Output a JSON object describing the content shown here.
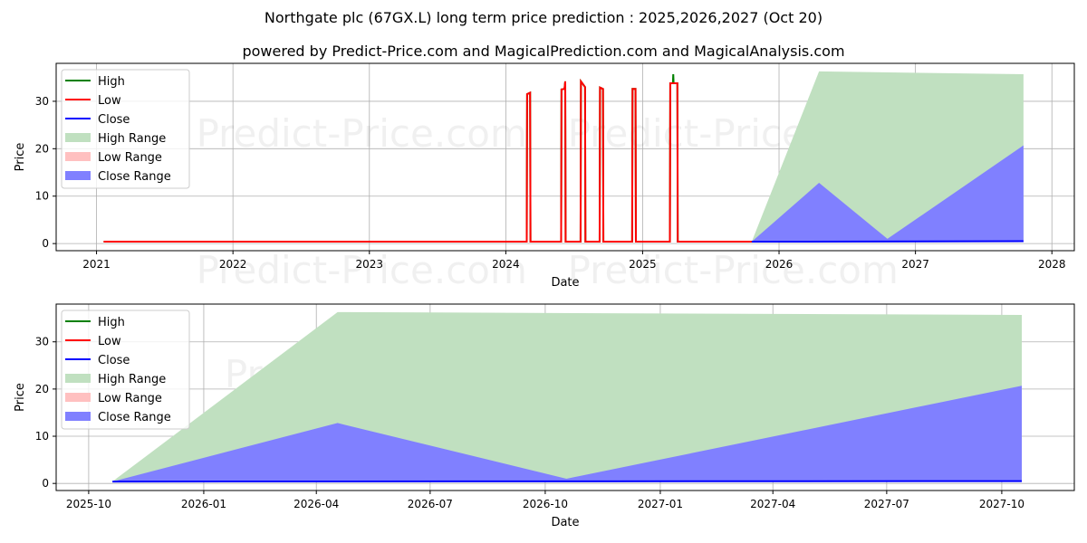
{
  "title": "Northgate plc (67GX.L) long term price prediction : 2025,2026,2027 (Oct 20)",
  "subtitle": "powered by Predict-Price.com and MagicalPrediction.com and MagicalAnalysis.com",
  "watermark": "Predict-Price.com",
  "colors": {
    "high": "#008000",
    "low": "#ff0000",
    "close": "#0000ff",
    "high_range": "#c0e0c0",
    "low_range": "#ffc0c0",
    "close_range": "#8080ff"
  },
  "chart_data": [
    {
      "type": "line",
      "xlabel": "Date",
      "ylabel": "Price",
      "xlim": [
        "2020-09-15",
        "2028-03-01"
      ],
      "ylim": [
        -1.5,
        38
      ],
      "xticks": [
        {
          "d": "2021-01-01",
          "label": "2021"
        },
        {
          "d": "2022-01-01",
          "label": "2022"
        },
        {
          "d": "2023-01-01",
          "label": "2023"
        },
        {
          "d": "2024-01-01",
          "label": "2024"
        },
        {
          "d": "2025-01-01",
          "label": "2025"
        },
        {
          "d": "2026-01-01",
          "label": "2026"
        },
        {
          "d": "2027-01-01",
          "label": "2027"
        },
        {
          "d": "2028-01-01",
          "label": "2028"
        }
      ],
      "yticks": [
        0,
        10,
        20,
        30
      ],
      "legend": {
        "position": "top-left",
        "entries": [
          "High",
          "Low",
          "Close",
          "High Range",
          "Low Range",
          "Close Range"
        ]
      },
      "series": {
        "high": [
          [
            "2021-01-20",
            0.4
          ],
          [
            "2024-02-26",
            0.4
          ],
          [
            "2024-02-27",
            31.5
          ],
          [
            "2024-03-06",
            31.8
          ],
          [
            "2024-03-07",
            0.4
          ],
          [
            "2024-05-28",
            0.4
          ],
          [
            "2024-05-29",
            32.5
          ],
          [
            "2024-06-06",
            32.6
          ],
          [
            "2024-06-08",
            34.2
          ],
          [
            "2024-06-09",
            0.4
          ],
          [
            "2024-07-19",
            0.4
          ],
          [
            "2024-07-20",
            34.2
          ],
          [
            "2024-07-31",
            33.0
          ],
          [
            "2024-08-01",
            0.4
          ],
          [
            "2024-09-08",
            0.4
          ],
          [
            "2024-09-09",
            32.9
          ],
          [
            "2024-09-17",
            32.6
          ],
          [
            "2024-09-18",
            0.4
          ],
          [
            "2024-12-04",
            0.4
          ],
          [
            "2024-12-05",
            32.6
          ],
          [
            "2024-12-13",
            32.6
          ],
          [
            "2024-12-14",
            0.4
          ],
          [
            "2025-03-15",
            0.4
          ],
          [
            "2025-03-16",
            33.8
          ],
          [
            "2025-03-23",
            33.8
          ],
          [
            "2025-03-24",
            35.7
          ],
          [
            "2025-03-25",
            33.8
          ],
          [
            "2025-04-04",
            33.8
          ],
          [
            "2025-04-05",
            0.4
          ],
          [
            "2025-10-20",
            0.4
          ]
        ],
        "low": [
          [
            "2021-01-20",
            0.4
          ],
          [
            "2024-02-26",
            0.4
          ],
          [
            "2024-02-27",
            31.5
          ],
          [
            "2024-03-06",
            31.8
          ],
          [
            "2024-03-07",
            0.4
          ],
          [
            "2024-05-28",
            0.4
          ],
          [
            "2024-05-29",
            32.5
          ],
          [
            "2024-06-06",
            32.6
          ],
          [
            "2024-06-08",
            34.2
          ],
          [
            "2024-06-09",
            0.4
          ],
          [
            "2024-07-19",
            0.4
          ],
          [
            "2024-07-20",
            34.2
          ],
          [
            "2024-07-31",
            33.0
          ],
          [
            "2024-08-01",
            0.4
          ],
          [
            "2024-09-08",
            0.4
          ],
          [
            "2024-09-09",
            32.9
          ],
          [
            "2024-09-17",
            32.6
          ],
          [
            "2024-09-18",
            0.4
          ],
          [
            "2024-12-04",
            0.4
          ],
          [
            "2024-12-05",
            32.6
          ],
          [
            "2024-12-13",
            32.6
          ],
          [
            "2024-12-14",
            0.4
          ],
          [
            "2025-03-15",
            0.4
          ],
          [
            "2025-03-16",
            33.8
          ],
          [
            "2025-04-04",
            33.8
          ],
          [
            "2025-04-05",
            0.4
          ],
          [
            "2025-10-20",
            0.4
          ]
        ],
        "close": [
          [
            "2025-10-20",
            0.4
          ],
          [
            "2027-10-17",
            0.5
          ]
        ],
        "high_range": [
          [
            "2025-10-20",
            0.4,
            0.4
          ],
          [
            "2026-04-18",
            0.4,
            36.3
          ],
          [
            "2027-10-17",
            0.4,
            35.7
          ]
        ],
        "close_range": [
          [
            "2025-10-20",
            0.4,
            0.4
          ],
          [
            "2026-04-18",
            0.4,
            12.8
          ],
          [
            "2026-10-18",
            0.4,
            1.0
          ],
          [
            "2027-10-17",
            0.4,
            20.7
          ]
        ]
      }
    },
    {
      "type": "line",
      "xlabel": "Date",
      "ylabel": "Price",
      "xlim": [
        "2025-09-05",
        "2027-11-28"
      ],
      "ylim": [
        -1.5,
        38
      ],
      "xticks": [
        {
          "d": "2025-10-01",
          "label": "2025-10"
        },
        {
          "d": "2026-01-01",
          "label": "2026-01"
        },
        {
          "d": "2026-04-01",
          "label": "2026-04"
        },
        {
          "d": "2026-07-01",
          "label": "2026-07"
        },
        {
          "d": "2026-10-01",
          "label": "2026-10"
        },
        {
          "d": "2027-01-01",
          "label": "2027-01"
        },
        {
          "d": "2027-04-01",
          "label": "2027-04"
        },
        {
          "d": "2027-07-01",
          "label": "2027-07"
        },
        {
          "d": "2027-10-01",
          "label": "2027-10"
        }
      ],
      "yticks": [
        0,
        10,
        20,
        30
      ],
      "legend": {
        "position": "top-left",
        "entries": [
          "High",
          "Low",
          "Close",
          "High Range",
          "Low Range",
          "Close Range"
        ]
      },
      "series": {
        "high": [],
        "low": [],
        "close": [
          [
            "2025-10-20",
            0.4
          ],
          [
            "2027-10-17",
            0.5
          ]
        ],
        "high_range": [
          [
            "2025-10-20",
            0.4,
            0.4
          ],
          [
            "2026-04-18",
            0.4,
            36.3
          ],
          [
            "2027-10-17",
            0.4,
            35.7
          ]
        ],
        "close_range": [
          [
            "2025-10-20",
            0.4,
            0.4
          ],
          [
            "2026-04-18",
            0.4,
            12.8
          ],
          [
            "2026-10-18",
            0.4,
            1.0
          ],
          [
            "2027-10-17",
            0.4,
            20.7
          ]
        ]
      }
    }
  ]
}
